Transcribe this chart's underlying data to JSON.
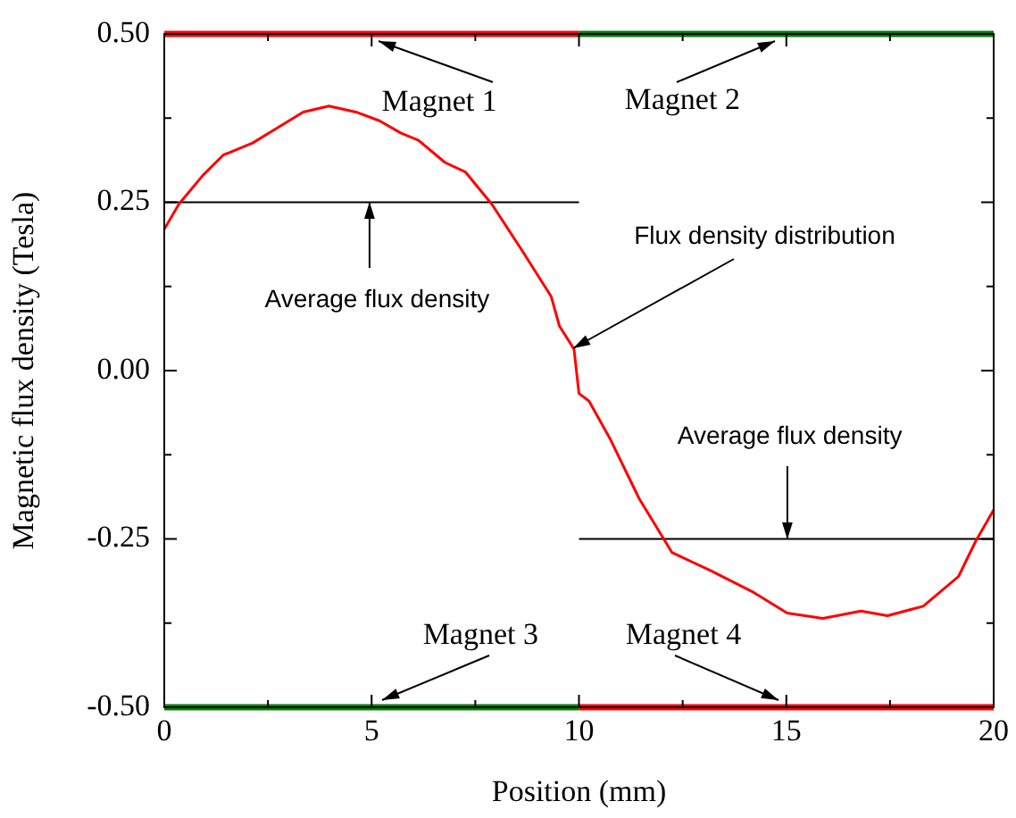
{
  "chart_data": {
    "type": "line",
    "xlabel": "Position (mm)",
    "ylabel": "Magnetic flux density (Tesla)",
    "xlim": [
      0,
      20
    ],
    "ylim": [
      -0.5,
      0.5
    ],
    "xticks": [
      0,
      5,
      10,
      15,
      20
    ],
    "yticks": [
      {
        "value": -0.5,
        "label": "-0.50"
      },
      {
        "value": -0.25,
        "label": "-0.25"
      },
      {
        "value": 0,
        "label": "0.00"
      },
      {
        "value": 0.25,
        "label": "0.25"
      },
      {
        "value": 0.5,
        "label": "0.50"
      }
    ],
    "grid": false,
    "legend": false,
    "marker": "none",
    "line_style": "solid",
    "series": [
      {
        "color": "#ff0000",
        "x": [
          0,
          0.35,
          0.93,
          1.42,
          2.13,
          2.77,
          3.35,
          3.97,
          4.62,
          5.19,
          5.7,
          6.13,
          6.77,
          7.26,
          7.9,
          8.61,
          9.33,
          9.53,
          9.88,
          10.0,
          10.24,
          10.74,
          11.45,
          12.24,
          13.17,
          14.17,
          15.02,
          15.88,
          16.8,
          17.44,
          18.3,
          19.15,
          19.57,
          20
        ],
        "values": [
          0.21,
          0.247,
          0.29,
          0.32,
          0.338,
          0.362,
          0.384,
          0.393,
          0.384,
          0.371,
          0.353,
          0.342,
          0.309,
          0.295,
          0.247,
          0.18,
          0.11,
          0.066,
          0.032,
          -0.034,
          -0.045,
          -0.1,
          -0.19,
          -0.27,
          -0.297,
          -0.328,
          -0.36,
          -0.368,
          -0.357,
          -0.364,
          -0.35,
          -0.306,
          -0.253,
          -0.207
        ]
      },
      {
        "color": "#ff0000",
        "x": [
          0,
          10
        ],
        "values": [
          0.5,
          0.5
        ]
      },
      {
        "color": "#008000",
        "x": [
          10,
          20
        ],
        "values": [
          0.5,
          0.5
        ]
      },
      {
        "color": "#008000",
        "x": [
          0,
          10
        ],
        "values": [
          -0.5,
          -0.5
        ]
      },
      {
        "color": "#ff0000",
        "x": [
          10,
          20
        ],
        "values": [
          -0.5,
          -0.5
        ]
      },
      {
        "color": "#000000",
        "x": [
          0,
          10
        ],
        "values": [
          0.25,
          0.25
        ]
      },
      {
        "color": "#000000",
        "x": [
          10,
          20
        ],
        "values": [
          -0.25,
          -0.25
        ]
      }
    ],
    "annotations": [
      {
        "text": "Magnet 1",
        "x": 5.17,
        "y": 0.49
      },
      {
        "text": "Magnet 2",
        "x": 14.73,
        "y": 0.49
      },
      {
        "text": "Magnet 3",
        "x": 5.26,
        "y": -0.49
      },
      {
        "text": "Magnet 4",
        "x": 14.8,
        "y": -0.49
      },
      {
        "text": "Average flux density",
        "x": 4.96,
        "y": 0.25
      },
      {
        "text": "Average flux density",
        "x": 15.04,
        "y": -0.25
      },
      {
        "text": "Flux density distribution",
        "x": 9.87,
        "y": 0.034
      }
    ]
  }
}
